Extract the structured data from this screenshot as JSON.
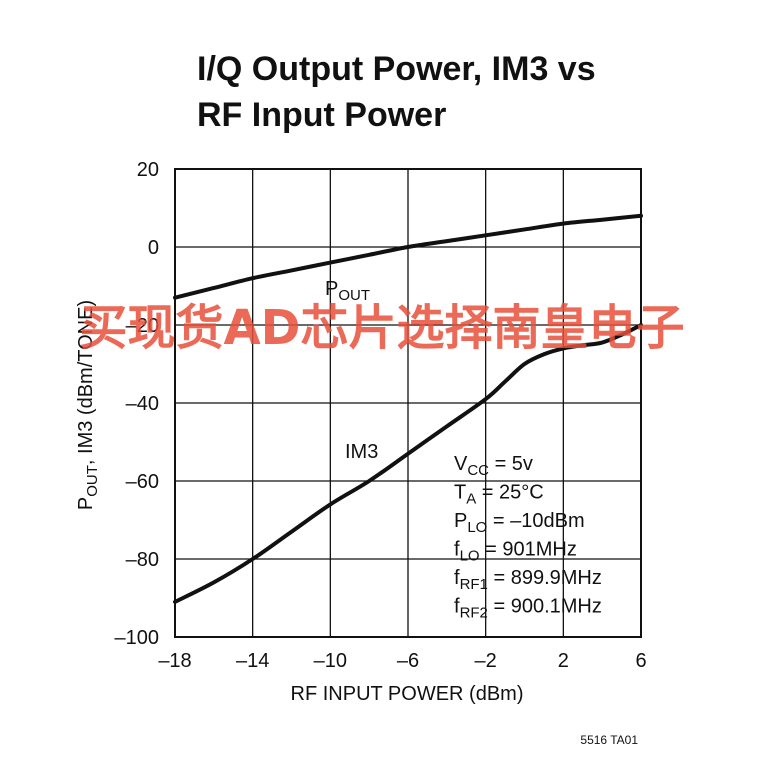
{
  "chart_data": {
    "type": "line",
    "title_lines": [
      "I/Q Output Power, IM3 vs",
      "RF Input Power"
    ],
    "xlabel": "RF INPUT POWER (dBm)",
    "ylabel": {
      "p": "P",
      "sub": "OUT",
      "rest": ", IM3 (dBm/TONE)"
    },
    "xlim": [
      -18,
      6
    ],
    "ylim": [
      -100,
      20
    ],
    "x_ticks": [
      -18,
      -14,
      -10,
      -6,
      -2,
      2,
      6
    ],
    "x_tick_labels": [
      "–18",
      "–14",
      "–10",
      "–6",
      "–2",
      "2",
      "6"
    ],
    "y_ticks": [
      20,
      0,
      -20,
      -40,
      -60,
      -80,
      -100
    ],
    "y_tick_labels": [
      "20",
      "0",
      "–20",
      "–40",
      "–60",
      "–80",
      "–100"
    ],
    "grid": true,
    "series": [
      {
        "name": "POUT",
        "x": [
          -18,
          -16,
          -14,
          -12,
          -10,
          -8,
          -6,
          -4,
          -2,
          0,
          2,
          4,
          6
        ],
        "y": [
          -13,
          -10.5,
          -8,
          -6,
          -4,
          -2,
          0,
          1.5,
          3,
          4.5,
          6,
          7,
          8
        ]
      },
      {
        "name": "IM3",
        "x": [
          -18,
          -16,
          -14,
          -12,
          -10,
          -8,
          -6,
          -4,
          -2,
          -1,
          0,
          1,
          2,
          3,
          4,
          5,
          6
        ],
        "y": [
          -91,
          -86,
          -80,
          -73,
          -66,
          -60,
          -53,
          -46,
          -39,
          -34.5,
          -30,
          -27.5,
          -26,
          -25.2,
          -24.5,
          -22.5,
          -20
        ]
      }
    ],
    "annotations": [
      {
        "id": "pout",
        "p": "P",
        "sub": "OUT",
        "rest": ""
      },
      {
        "id": "im3",
        "text": "IM3"
      }
    ],
    "conditions": [
      {
        "main": "V",
        "sub": "CC",
        "rest": " = 5v"
      },
      {
        "main": "T",
        "sub": "A",
        "rest": " = 25°C"
      },
      {
        "main": "P",
        "sub": "LO",
        "rest": " = –10dBm"
      },
      {
        "main": "f",
        "sub": "LO",
        "rest": " = 901MHz"
      },
      {
        "main": "f",
        "sub": "RF1",
        "rest": " = 899.9MHz"
      },
      {
        "main": "f",
        "sub": "RF2",
        "rest": " = 900.1MHz"
      }
    ],
    "figure_id": "5516 TA01"
  },
  "watermark": "买现货AD芯片选择南皇电子",
  "colors": {
    "line": "#111111",
    "grid": "#111111",
    "watermark": "#e8503a"
  }
}
